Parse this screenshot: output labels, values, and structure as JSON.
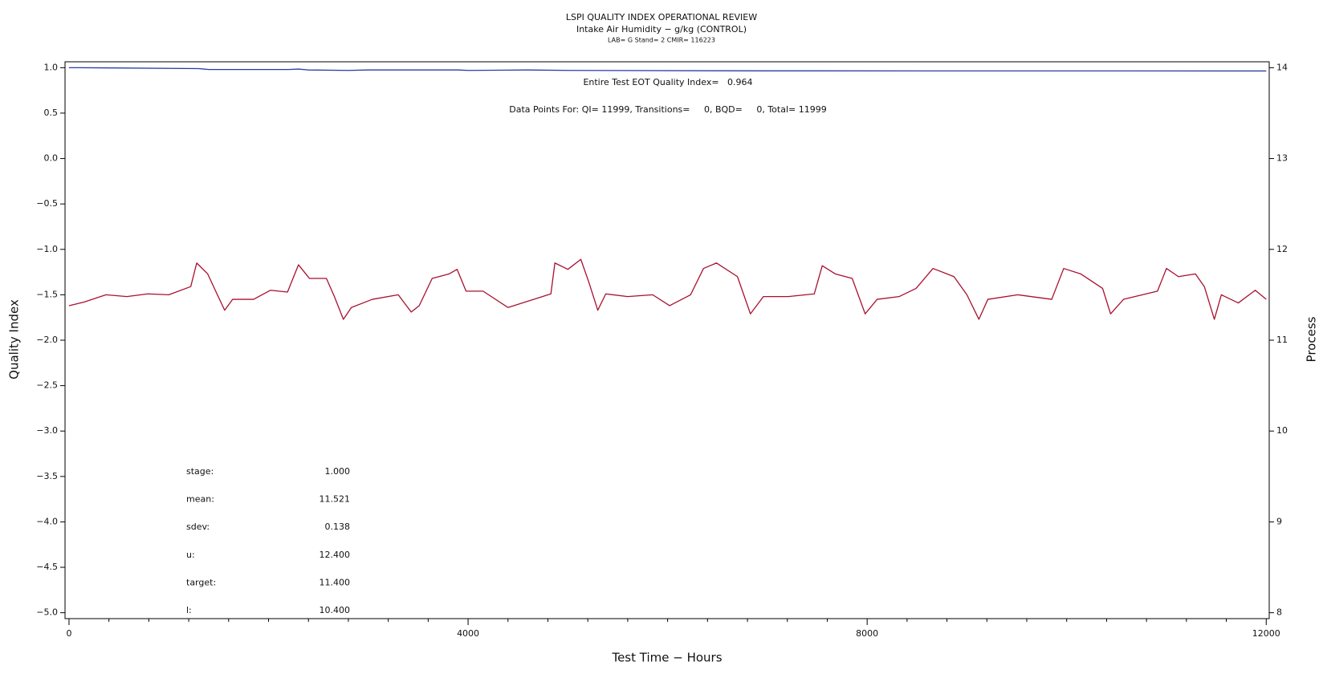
{
  "chart_data": {
    "type": "line",
    "title": "LSPI QUALITY INDEX OPERATIONAL REVIEW",
    "subtitle": "Intake Air Humidity − g/kg (CONTROL)",
    "subtitle2": "LAB= G Stand= 2 CMIR= 116223",
    "annotations": [
      "Entire Test EOT Quality Index=   0.964",
      "Data Points For: QI= 11999, Transitions=     0, BQD=     0, Total= 11999"
    ],
    "stats": [
      {
        "label": "stage:",
        "value": "1.000"
      },
      {
        "label": "mean:",
        "value": "11.521"
      },
      {
        "label": "sdev:",
        "value": "0.138"
      },
      {
        "label": "u:",
        "value": "12.400"
      },
      {
        "label": "target:",
        "value": "11.400"
      },
      {
        "label": "l:",
        "value": "10.400"
      }
    ],
    "x_label": "Test Time − Hours",
    "y_label": "Quality Index",
    "y2_label": "Process",
    "xlim": [
      -40,
      12030
    ],
    "xticks": [
      0,
      4000,
      8000,
      12000
    ],
    "xminorticks": [
      400,
      800,
      1200,
      1600,
      2000,
      2400,
      2800,
      3200,
      3600,
      4400,
      4800,
      5200,
      5600,
      6000,
      6400,
      6800,
      7200,
      7600,
      8400,
      8800,
      9200,
      9600,
      10000,
      10400,
      10800,
      11200,
      11600
    ],
    "ylim": [
      -5.065,
      1.065
    ],
    "yticks": [
      {
        "value": -5,
        "label": "−5.0"
      },
      {
        "value": -4.5,
        "label": "−4.5"
      },
      {
        "value": -4,
        "label": "−4.0"
      },
      {
        "value": -3.5,
        "label": "−3.5"
      },
      {
        "value": -3,
        "label": "−3.0"
      },
      {
        "value": -2.5,
        "label": "−2.5"
      },
      {
        "value": -2,
        "label": "−2.0"
      },
      {
        "value": -1.5,
        "label": "−1.5"
      },
      {
        "value": -1,
        "label": "−1.0"
      },
      {
        "value": -0.5,
        "label": "−0.5"
      },
      {
        "value": 0,
        "label": "0.0"
      },
      {
        "value": 0.5,
        "label": "0.5"
      },
      {
        "value": 1,
        "label": "1.0"
      }
    ],
    "y2lim": [
      7.935,
      14.065
    ],
    "y2ticks": [
      8,
      9,
      10,
      11,
      12,
      13,
      14
    ],
    "series": [
      {
        "name": "Quality Index",
        "color": "#2a3aa8",
        "x": [
          0,
          100,
          1300,
          1400,
          2200,
          2300,
          2400,
          2800,
          3000,
          3900,
          4000,
          4600,
          5000,
          6500,
          7000,
          12000
        ],
        "values": [
          1.0,
          1.0,
          0.99,
          0.98,
          0.98,
          0.985,
          0.975,
          0.97,
          0.975,
          0.975,
          0.97,
          0.975,
          0.97,
          0.966,
          0.965,
          0.964
        ]
      },
      {
        "name": "Process",
        "color": "#a8102e",
        "axis": "y2",
        "x": [
          0,
          150,
          370,
          580,
          790,
          1000,
          1220,
          1280,
          1390,
          1470,
          1560,
          1640,
          1850,
          2020,
          2190,
          2300,
          2410,
          2580,
          2660,
          2750,
          2830,
          3040,
          3300,
          3430,
          3510,
          3640,
          3810,
          3890,
          3980,
          4150,
          4400,
          4660,
          4830,
          4870,
          5000,
          5130,
          5210,
          5300,
          5380,
          5600,
          5850,
          6020,
          6230,
          6360,
          6490,
          6700,
          6830,
          6960,
          7210,
          7470,
          7550,
          7680,
          7850,
          7980,
          8100,
          8320,
          8490,
          8660,
          8870,
          9000,
          9120,
          9210,
          9510,
          9850,
          9970,
          10140,
          10360,
          10440,
          10570,
          10910,
          11000,
          11120,
          11290,
          11380,
          11480,
          11550,
          11720,
          11890,
          12000
        ],
        "values": [
          11.38,
          11.42,
          11.5,
          11.48,
          11.51,
          11.5,
          11.59,
          11.85,
          11.73,
          11.54,
          11.33,
          11.45,
          11.45,
          11.55,
          11.53,
          11.83,
          11.68,
          11.68,
          11.48,
          11.23,
          11.36,
          11.45,
          11.5,
          11.31,
          11.38,
          11.68,
          11.73,
          11.78,
          11.54,
          11.54,
          11.36,
          11.45,
          11.51,
          11.85,
          11.78,
          11.89,
          11.64,
          11.33,
          11.51,
          11.48,
          11.5,
          11.38,
          11.5,
          11.79,
          11.85,
          11.7,
          11.29,
          11.48,
          11.48,
          11.51,
          11.82,
          11.73,
          11.68,
          11.29,
          11.45,
          11.48,
          11.57,
          11.79,
          11.7,
          11.5,
          11.23,
          11.45,
          11.5,
          11.45,
          11.79,
          11.73,
          11.57,
          11.29,
          11.45,
          11.54,
          11.79,
          11.7,
          11.73,
          11.59,
          11.23,
          11.5,
          11.41,
          11.55,
          11.45
        ]
      }
    ]
  }
}
